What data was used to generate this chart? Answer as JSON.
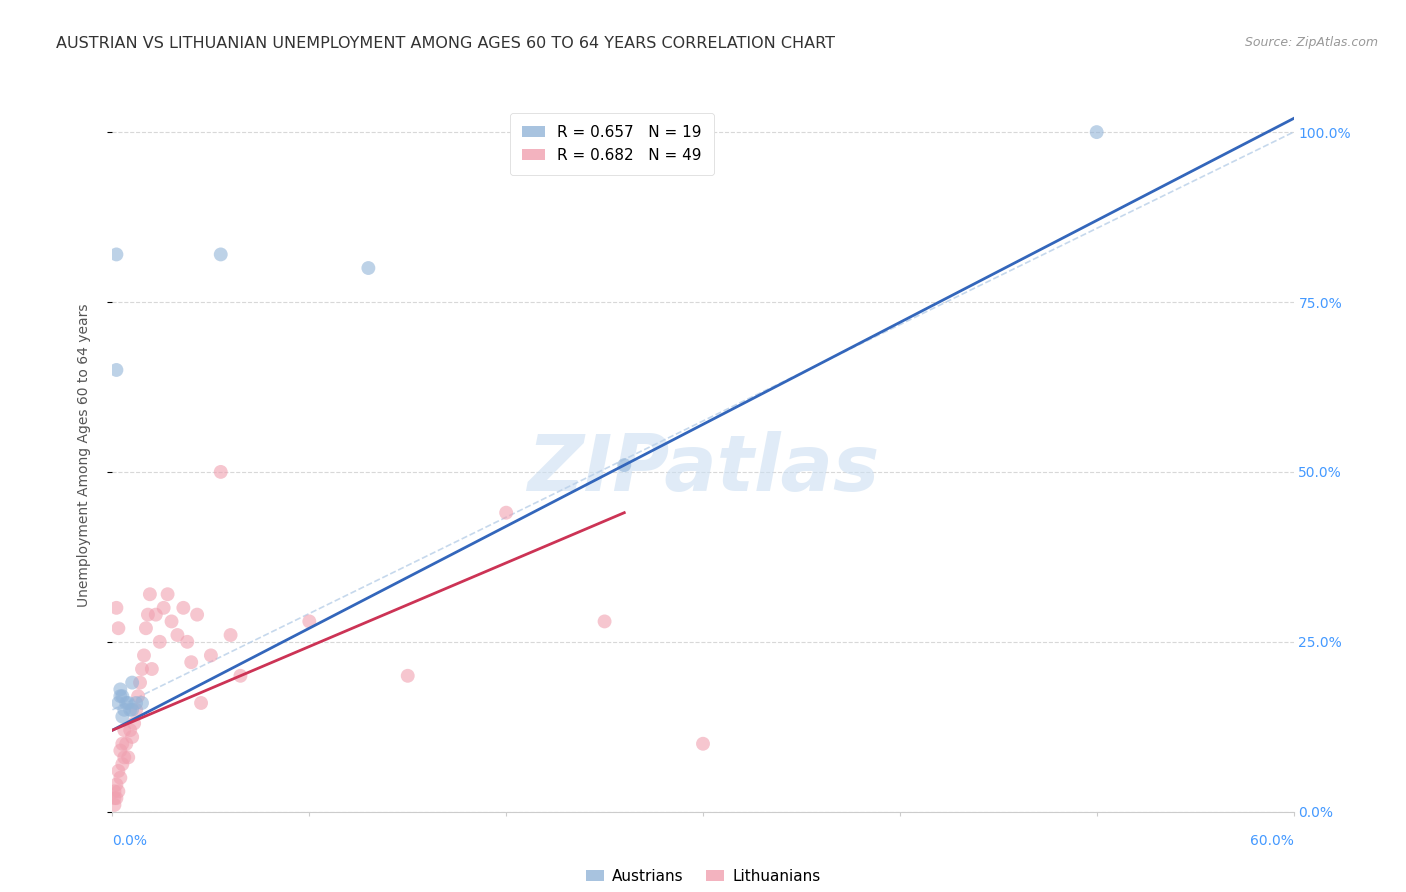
{
  "title": "AUSTRIAN VS LITHUANIAN UNEMPLOYMENT AMONG AGES 60 TO 64 YEARS CORRELATION CHART",
  "source": "Source: ZipAtlas.com",
  "ylabel": "Unemployment Among Ages 60 to 64 years",
  "legend_austrians": "R = 0.657   N = 19",
  "legend_lithuanians": "R = 0.682   N = 49",
  "legend_label_austrians": "Austrians",
  "legend_label_lithuanians": "Lithuanians",
  "background_color": "#ffffff",
  "grid_color": "#d8d8d8",
  "blue_scatter_color": "#92b4d8",
  "pink_scatter_color": "#f0a0b0",
  "blue_line_color": "#3366bb",
  "pink_line_color": "#cc3355",
  "dashed_line_color": "#b8cfe8",
  "axis_color": "#4499ff",
  "xlim": [
    0.0,
    0.6
  ],
  "ylim": [
    0.0,
    1.05
  ],
  "marker_size": 100,
  "title_fontsize": 11.5,
  "axis_label_fontsize": 10,
  "tick_fontsize": 10,
  "legend_fontsize": 11,
  "austrians_x": [
    0.002,
    0.003,
    0.004,
    0.004,
    0.005,
    0.005,
    0.006,
    0.007,
    0.008,
    0.009,
    0.01,
    0.01,
    0.012,
    0.015,
    0.055,
    0.13,
    0.26,
    0.5,
    0.002
  ],
  "austrians_y": [
    0.65,
    0.16,
    0.18,
    0.17,
    0.14,
    0.17,
    0.15,
    0.16,
    0.16,
    0.15,
    0.15,
    0.19,
    0.16,
    0.16,
    0.82,
    0.8,
    0.51,
    1.0,
    0.82
  ],
  "lithuanians_x": [
    0.001,
    0.001,
    0.001,
    0.002,
    0.002,
    0.003,
    0.003,
    0.004,
    0.004,
    0.005,
    0.005,
    0.006,
    0.006,
    0.007,
    0.008,
    0.009,
    0.01,
    0.011,
    0.012,
    0.013,
    0.014,
    0.015,
    0.016,
    0.017,
    0.018,
    0.019,
    0.02,
    0.022,
    0.024,
    0.026,
    0.028,
    0.03,
    0.033,
    0.036,
    0.038,
    0.04,
    0.043,
    0.045,
    0.05,
    0.055,
    0.06,
    0.065,
    0.1,
    0.15,
    0.2,
    0.25,
    0.3,
    0.002,
    0.003
  ],
  "lithuanians_y": [
    0.01,
    0.02,
    0.03,
    0.02,
    0.04,
    0.03,
    0.06,
    0.05,
    0.09,
    0.07,
    0.1,
    0.08,
    0.12,
    0.1,
    0.08,
    0.12,
    0.11,
    0.13,
    0.15,
    0.17,
    0.19,
    0.21,
    0.23,
    0.27,
    0.29,
    0.32,
    0.21,
    0.29,
    0.25,
    0.3,
    0.32,
    0.28,
    0.26,
    0.3,
    0.25,
    0.22,
    0.29,
    0.16,
    0.23,
    0.5,
    0.26,
    0.2,
    0.28,
    0.2,
    0.44,
    0.28,
    0.1,
    0.3,
    0.27
  ],
  "blue_line_x": [
    0.0,
    0.6
  ],
  "blue_line_y": [
    0.12,
    1.02
  ],
  "pink_line_x": [
    0.0,
    0.26
  ],
  "pink_line_y": [
    0.12,
    0.44
  ],
  "dash_line_x": [
    0.0,
    0.6
  ],
  "dash_line_y": [
    0.15,
    1.0
  ]
}
